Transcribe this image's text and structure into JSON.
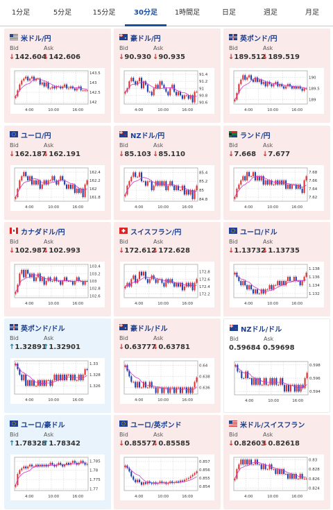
{
  "tabs": [
    {
      "label": "1分足",
      "active": false
    },
    {
      "label": "5分足",
      "active": false
    },
    {
      "label": "15分足",
      "active": false
    },
    {
      "label": "30分足",
      "active": true
    },
    {
      "label": "1時間足",
      "active": false
    },
    {
      "label": "日足",
      "active": false
    },
    {
      "label": "週足",
      "active": false
    },
    {
      "label": "月足",
      "active": false
    }
  ],
  "labels": {
    "bid": "Bid",
    "ask": "Ask"
  },
  "x_ticks": [
    "4:00",
    "10:00",
    "16:00"
  ],
  "colors": {
    "down_bg": "#fbeaea",
    "up_bg": "#e9f3fb",
    "down_arrow": "#d23030",
    "up_arrow": "#1a7a9a",
    "title": "#1a3f8f",
    "tab_active": "#1a4fa0",
    "candle_up": "#e03030",
    "candle_down": "#1a3fb0",
    "ma": "#cc33cc"
  },
  "cards": [
    {
      "name": "米ドル/円",
      "flag": "us",
      "trend": "down",
      "bid_dir": "down",
      "bid": "142.604",
      "ask_dir": "down",
      "ask": "142.606",
      "y_ticks": [
        "143.5",
        "143",
        "142.5",
        "142"
      ],
      "y_min": 141.9,
      "y_max": 143.6,
      "closes": [
        142.3,
        142.6,
        142.9,
        143.1,
        143.2,
        143.3,
        143.1,
        143.2,
        143.3,
        143.1,
        143.2,
        143.2,
        142.9,
        143.0,
        142.8,
        143.0,
        142.7,
        142.7,
        142.8,
        142.7,
        142.8,
        142.8,
        142.7,
        142.8,
        142.9,
        142.7,
        142.7,
        142.8,
        142.7,
        142.6,
        142.7,
        142.8,
        142.6,
        142.6,
        142.6,
        142.6
      ]
    },
    {
      "name": "豪ドル/円",
      "flag": "au",
      "trend": "down",
      "bid_dir": "down",
      "bid": "90.930",
      "ask_dir": "down",
      "ask": "90.935",
      "y_ticks": [
        "91.4",
        "91.2",
        "91",
        "90.8",
        "90.6"
      ],
      "y_min": 90.55,
      "y_max": 91.5,
      "closes": [
        90.9,
        91.0,
        91.2,
        91.3,
        91.2,
        91.1,
        91.2,
        91.3,
        91.0,
        91.2,
        91.1,
        90.9,
        90.9,
        90.8,
        91.0,
        91.1,
        91.0,
        91.2,
        91.1,
        91.0,
        90.9,
        90.8,
        91.0,
        91.1,
        90.9,
        90.8,
        90.9,
        90.8,
        90.7,
        90.8,
        90.8,
        90.7,
        90.8,
        90.6,
        90.9,
        90.9
      ]
    },
    {
      "name": "英ポンド/円",
      "flag": "gb",
      "trend": "down",
      "bid_dir": "down",
      "bid": "189.512",
      "ask_dir": "down",
      "ask": "189.519",
      "y_ticks": [
        "190",
        "189.5",
        "189"
      ],
      "y_min": 188.8,
      "y_max": 190.3,
      "closes": [
        189.0,
        189.3,
        189.7,
        189.9,
        190.1,
        189.9,
        190.0,
        190.1,
        189.9,
        189.8,
        190.0,
        189.8,
        189.9,
        189.7,
        189.8,
        189.6,
        189.8,
        189.7,
        189.6,
        189.7,
        189.8,
        189.6,
        189.7,
        189.6,
        189.5,
        189.6,
        189.7,
        189.6,
        189.5,
        189.6,
        189.5,
        189.6,
        189.5,
        189.4,
        189.5,
        189.5
      ]
    },
    {
      "name": "ユーロ/円",
      "flag": "eu",
      "trend": "down",
      "bid_dir": "down",
      "bid": "162.187",
      "ask_dir": "down",
      "ask": "162.191",
      "y_ticks": [
        "162.4",
        "162.2",
        "162",
        "161.8"
      ],
      "y_min": 161.7,
      "y_max": 162.5,
      "closes": [
        161.8,
        162.0,
        162.2,
        162.3,
        162.4,
        162.3,
        162.2,
        162.3,
        162.1,
        162.2,
        162.1,
        162.2,
        162.0,
        162.1,
        162.2,
        162.1,
        162.2,
        162.2,
        162.3,
        162.2,
        162.1,
        162.2,
        162.3,
        162.2,
        162.1,
        162.0,
        162.1,
        162.0,
        162.1,
        161.9,
        162.0,
        161.9,
        162.0,
        161.8,
        162.1,
        162.2
      ]
    },
    {
      "name": "NZドル/円",
      "flag": "nz",
      "trend": "down",
      "bid_dir": "down",
      "bid": "85.103",
      "ask_dir": "down",
      "ask": "85.110",
      "y_ticks": [
        "85.4",
        "85.2",
        "85",
        "84.8"
      ],
      "y_min": 84.75,
      "y_max": 85.5,
      "closes": [
        84.9,
        85.1,
        85.2,
        85.3,
        85.4,
        85.3,
        85.3,
        85.4,
        85.2,
        85.2,
        85.1,
        85.2,
        85.2,
        85.0,
        85.1,
        85.2,
        85.1,
        85.2,
        85.1,
        85.2,
        85.0,
        85.1,
        85.2,
        85.1,
        85.0,
        85.1,
        85.0,
        85.0,
        85.1,
        84.9,
        85.0,
        84.9,
        85.0,
        84.8,
        85.0,
        85.1
      ]
    },
    {
      "name": "ランド/円",
      "flag": "za",
      "trend": "down",
      "bid_dir": "down",
      "bid": "7.668",
      "ask_dir": "down",
      "ask": "7.677",
      "y_ticks": [
        "7.68",
        "7.66",
        "7.64",
        "7.62"
      ],
      "y_min": 7.61,
      "y_max": 7.69,
      "closes": [
        7.62,
        7.64,
        7.65,
        7.66,
        7.67,
        7.66,
        7.68,
        7.67,
        7.67,
        7.68,
        7.66,
        7.67,
        7.66,
        7.67,
        7.65,
        7.66,
        7.65,
        7.66,
        7.65,
        7.65,
        7.66,
        7.65,
        7.66,
        7.65,
        7.66,
        7.64,
        7.65,
        7.64,
        7.65,
        7.65,
        7.64,
        7.65,
        7.64,
        7.63,
        7.66,
        7.67
      ]
    },
    {
      "name": "カナダドル/円",
      "flag": "ca",
      "trend": "down",
      "bid_dir": "down",
      "bid": "102.987",
      "ask_dir": "down",
      "ask": "102.993",
      "y_ticks": [
        "103.4",
        "103.2",
        "103",
        "102.8",
        "102.6"
      ],
      "y_min": 102.55,
      "y_max": 103.45,
      "closes": [
        102.7,
        102.9,
        103.2,
        103.3,
        103.1,
        103.3,
        103.2,
        103.1,
        103.2,
        103.0,
        103.1,
        103.2,
        103.0,
        103.1,
        102.9,
        103.0,
        103.1,
        103.0,
        103.0,
        103.1,
        103.0,
        103.0,
        102.9,
        103.0,
        103.1,
        103.0,
        103.0,
        103.0,
        102.9,
        103.0,
        103.1,
        103.0,
        103.0,
        102.9,
        103.0,
        103.0
      ]
    },
    {
      "name": "スイスフラン/円",
      "flag": "ch",
      "trend": "down",
      "bid_dir": "down",
      "bid": "172.612",
      "ask_dir": "down",
      "ask": "172.628",
      "y_ticks": [
        "172.8",
        "172.6",
        "172.4",
        "172.2"
      ],
      "y_min": 172.1,
      "y_max": 173.0,
      "closes": [
        172.4,
        172.5,
        172.4,
        172.6,
        172.7,
        172.5,
        172.6,
        172.8,
        172.7,
        172.8,
        172.6,
        172.5,
        172.6,
        172.7,
        172.6,
        172.5,
        172.6,
        172.6,
        172.5,
        172.4,
        172.6,
        172.5,
        172.6,
        172.5,
        172.4,
        172.5,
        172.4,
        172.5,
        172.3,
        172.4,
        172.5,
        172.4,
        172.5,
        172.3,
        172.5,
        172.6
      ]
    },
    {
      "name": "ユーロ/ドル",
      "flag": "eu",
      "trend": "down",
      "bid_dir": "down",
      "bid": "1.13732",
      "ask_dir": "down",
      "ask": "1.13735",
      "y_ticks": [
        "1.138",
        "1.136",
        "1.134",
        "1.132"
      ],
      "y_min": 1.131,
      "y_max": 1.139,
      "closes": [
        1.137,
        1.136,
        1.135,
        1.134,
        1.135,
        1.134,
        1.133,
        1.134,
        1.133,
        1.132,
        1.133,
        1.132,
        1.132,
        1.133,
        1.132,
        1.133,
        1.133,
        1.134,
        1.133,
        1.134,
        1.134,
        1.135,
        1.134,
        1.135,
        1.134,
        1.135,
        1.136,
        1.135,
        1.135,
        1.136,
        1.135,
        1.135,
        1.134,
        1.135,
        1.136,
        1.137
      ]
    },
    {
      "name": "英ポンド/ドル",
      "flag": "gb",
      "trend": "up",
      "bid_dir": "up",
      "bid": "1.32891",
      "ask_dir": "up",
      "ask": "1.32901",
      "y_ticks": [
        "1.33",
        "1.328",
        "1.326"
      ],
      "y_min": 1.3245,
      "y_max": 1.3305,
      "closes": [
        1.33,
        1.329,
        1.328,
        1.327,
        1.328,
        1.326,
        1.327,
        1.326,
        1.327,
        1.326,
        1.326,
        1.327,
        1.326,
        1.327,
        1.326,
        1.327,
        1.327,
        1.326,
        1.327,
        1.328,
        1.327,
        1.328,
        1.327,
        1.328,
        1.327,
        1.328,
        1.328,
        1.327,
        1.328,
        1.327,
        1.327,
        1.328,
        1.327,
        1.328,
        1.329,
        1.3289
      ]
    },
    {
      "name": "豪ドル/ドル",
      "flag": "au",
      "trend": "down",
      "bid_dir": "down",
      "bid": "0.63777",
      "ask_dir": "down",
      "ask": "0.63781",
      "y_ticks": [
        "0.64",
        "0.638",
        "0.636"
      ],
      "y_min": 0.6348,
      "y_max": 0.6408,
      "closes": [
        0.64,
        0.639,
        0.638,
        0.637,
        0.637,
        0.636,
        0.637,
        0.636,
        0.636,
        0.637,
        0.636,
        0.636,
        0.637,
        0.636,
        0.636,
        0.635,
        0.636,
        0.636,
        0.635,
        0.636,
        0.636,
        0.635,
        0.636,
        0.636,
        0.635,
        0.636,
        0.636,
        0.635,
        0.636,
        0.636,
        0.635,
        0.636,
        0.635,
        0.636,
        0.637,
        0.6378
      ]
    },
    {
      "name": "NZドル/ドル",
      "flag": "nz",
      "trend": "neutral",
      "bid_dir": "none",
      "bid": "0.59684",
      "ask_dir": "none",
      "ask": "0.59698",
      "y_ticks": [
        "0.598",
        "0.596",
        "0.594"
      ],
      "y_min": 0.5935,
      "y_max": 0.5985,
      "closes": [
        0.598,
        0.597,
        0.597,
        0.596,
        0.596,
        0.597,
        0.596,
        0.596,
        0.595,
        0.596,
        0.595,
        0.596,
        0.595,
        0.595,
        0.596,
        0.595,
        0.595,
        0.596,
        0.595,
        0.596,
        0.595,
        0.595,
        0.596,
        0.595,
        0.594,
        0.595,
        0.594,
        0.595,
        0.595,
        0.594,
        0.595,
        0.594,
        0.595,
        0.5945,
        0.596,
        0.5968
      ]
    },
    {
      "name": "ユーロ/豪ドル",
      "flag": "eu",
      "trend": "up",
      "bid_dir": "up",
      "bid": "1.78328",
      "ask_dir": "up",
      "ask": "1.78342",
      "y_ticks": [
        "1.785",
        "1.78",
        "1.775",
        "1.77"
      ],
      "y_min": 1.769,
      "y_max": 1.787,
      "closes": [
        1.772,
        1.778,
        1.78,
        1.781,
        1.782,
        1.781,
        1.782,
        1.783,
        1.782,
        1.782,
        1.783,
        1.782,
        1.783,
        1.782,
        1.783,
        1.782,
        1.783,
        1.784,
        1.783,
        1.782,
        1.783,
        1.784,
        1.783,
        1.782,
        1.783,
        1.784,
        1.783,
        1.784,
        1.785,
        1.784,
        1.783,
        1.784,
        1.785,
        1.784,
        1.783,
        1.7833
      ]
    },
    {
      "name": "ユーロ/英ポンド",
      "flag": "eu",
      "trend": "down",
      "bid_dir": "down",
      "bid": "0.85577",
      "ask_dir": "down",
      "ask": "0.85585",
      "y_ticks": [
        "0.857",
        "0.856",
        "0.855",
        "0.854"
      ],
      "y_min": 0.8535,
      "y_max": 0.8575,
      "closes": [
        0.8565,
        0.8562,
        0.8558,
        0.8552,
        0.8548,
        0.8545,
        0.8548,
        0.8545,
        0.8542,
        0.8545,
        0.8543,
        0.8546,
        0.8544,
        0.8543,
        0.8545,
        0.8543,
        0.8544,
        0.8546,
        0.8544,
        0.8545,
        0.8543,
        0.8544,
        0.8546,
        0.8544,
        0.8545,
        0.8546,
        0.8545,
        0.8547,
        0.8546,
        0.8548,
        0.8549,
        0.855,
        0.8552,
        0.8554,
        0.8556,
        0.8558
      ]
    },
    {
      "name": "米ドル/スイスフラン",
      "flag": "us",
      "trend": "down",
      "bid_dir": "down",
      "bid": "0.82603",
      "ask_dir": "down",
      "ask": "0.82618",
      "y_ticks": [
        "0.83",
        "0.828",
        "0.826",
        "0.824"
      ],
      "y_min": 0.8235,
      "y_max": 0.8305,
      "closes": [
        0.826,
        0.828,
        0.829,
        0.83,
        0.829,
        0.83,
        0.829,
        0.83,
        0.829,
        0.829,
        0.83,
        0.829,
        0.829,
        0.828,
        0.829,
        0.828,
        0.828,
        0.829,
        0.828,
        0.828,
        0.827,
        0.828,
        0.827,
        0.828,
        0.827,
        0.827,
        0.826,
        0.827,
        0.826,
        0.827,
        0.826,
        0.826,
        0.827,
        0.826,
        0.826,
        0.826
      ]
    }
  ]
}
